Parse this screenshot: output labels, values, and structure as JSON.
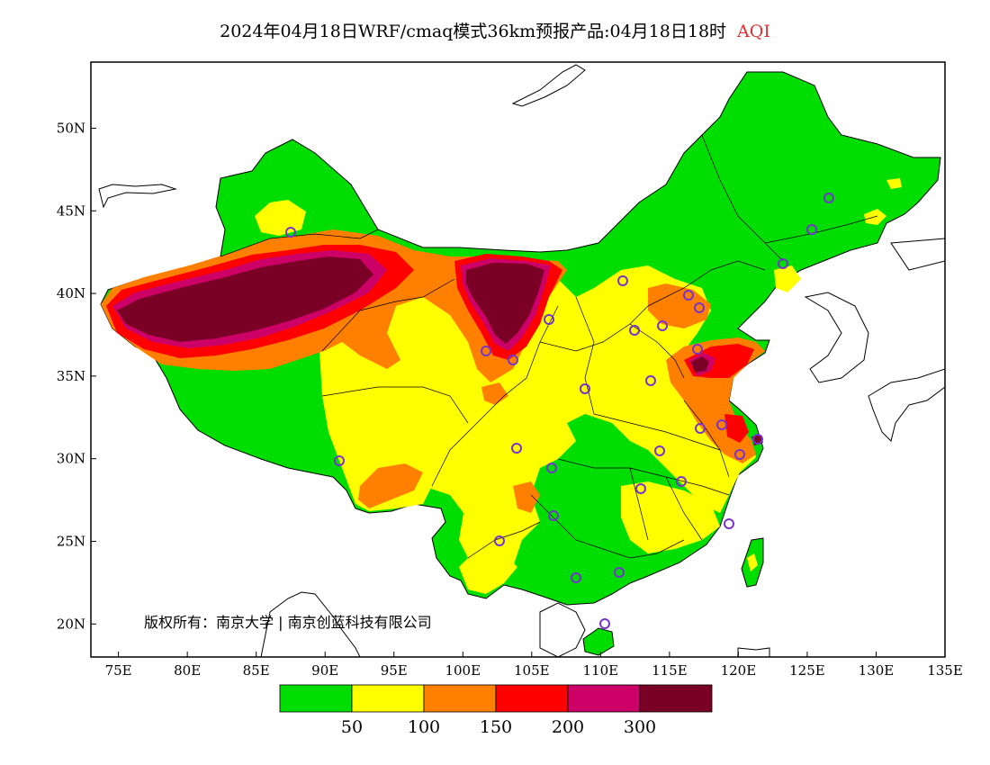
{
  "title": {
    "main": "2024年04月18日WRF/cmaq模式36km预报产品:04月18日18时",
    "variable": "AQI"
  },
  "map": {
    "lon_range": [
      73,
      135
    ],
    "lat_range": [
      18,
      54
    ],
    "lon_ticks": [
      "75E",
      "80E",
      "85E",
      "90E",
      "95E",
      "100E",
      "105E",
      "110E",
      "115E",
      "120E",
      "125E",
      "130E",
      "135E"
    ],
    "lat_ticks": [
      "20N",
      "25N",
      "30N",
      "35N",
      "40N",
      "45N",
      "50N"
    ],
    "lon_tick_values": [
      75,
      80,
      85,
      90,
      95,
      100,
      105,
      110,
      115,
      120,
      125,
      130,
      135
    ],
    "lat_tick_values": [
      20,
      25,
      30,
      35,
      40,
      45,
      50
    ],
    "copyright": "版权所有：南京大学 | 南京创蓝科技有限公司"
  },
  "legend": {
    "colors": [
      "#00dd00",
      "#ffff00",
      "#ff8000",
      "#ff0000",
      "#cc0066",
      "#7a0025"
    ],
    "labels": [
      "50",
      "100",
      "150",
      "200",
      "300"
    ]
  },
  "colors": {
    "good": "#00dd00",
    "moderate": "#ffff00",
    "sensitive": "#ff8000",
    "unhealthy": "#ff0000",
    "very_unhealthy": "#cc0066",
    "hazardous": "#7a0025",
    "station_marker": "#7733cc"
  }
}
